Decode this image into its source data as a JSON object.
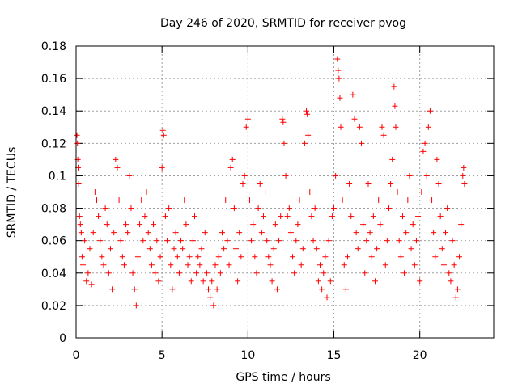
{
  "chart_data": {
    "type": "scatter",
    "title": "Day 246 of 2020, SRMTID for receiver pvog",
    "xlabel": "GPS time / hours",
    "ylabel": "SRMTID / TECUs",
    "xlim": [
      0,
      24.3
    ],
    "ylim": [
      0,
      0.18
    ],
    "x_ticks": [
      0,
      5,
      10,
      15,
      20
    ],
    "y_ticks": [
      0,
      0.02,
      0.04,
      0.06,
      0.08,
      0.1,
      0.12,
      0.14,
      0.16,
      0.18
    ],
    "y_tick_labels": [
      "0",
      "0.02",
      "0.04",
      "0.06",
      "0.08",
      "0.1",
      "0.12",
      "0.14",
      "0.16",
      "0.18"
    ],
    "grid": true,
    "marker": "+",
    "marker_color": "#ff0000",
    "series": [
      {
        "name": "pvog",
        "points": [
          [
            0.05,
            0.125
          ],
          [
            0.08,
            0.12
          ],
          [
            0.1,
            0.11
          ],
          [
            0.12,
            0.105
          ],
          [
            0.15,
            0.095
          ],
          [
            0.2,
            0.075
          ],
          [
            0.25,
            0.07
          ],
          [
            0.3,
            0.065
          ],
          [
            0.35,
            0.05
          ],
          [
            0.4,
            0.045
          ],
          [
            0.5,
            0.06
          ],
          [
            0.6,
            0.035
          ],
          [
            0.7,
            0.04
          ],
          [
            0.8,
            0.055
          ],
          [
            0.9,
            0.033
          ],
          [
            1.0,
            0.065
          ],
          [
            1.1,
            0.09
          ],
          [
            1.2,
            0.085
          ],
          [
            1.3,
            0.075
          ],
          [
            1.4,
            0.06
          ],
          [
            1.5,
            0.05
          ],
          [
            1.6,
            0.045
          ],
          [
            1.7,
            0.08
          ],
          [
            1.8,
            0.07
          ],
          [
            1.9,
            0.04
          ],
          [
            2.0,
            0.055
          ],
          [
            2.1,
            0.03
          ],
          [
            2.2,
            0.065
          ],
          [
            2.3,
            0.11
          ],
          [
            2.4,
            0.105
          ],
          [
            2.5,
            0.085
          ],
          [
            2.6,
            0.06
          ],
          [
            2.7,
            0.05
          ],
          [
            2.8,
            0.045
          ],
          [
            2.9,
            0.07
          ],
          [
            3.0,
            0.065
          ],
          [
            3.1,
            0.1
          ],
          [
            3.2,
            0.08
          ],
          [
            3.3,
            0.04
          ],
          [
            3.4,
            0.03
          ],
          [
            3.5,
            0.02
          ],
          [
            3.6,
            0.05
          ],
          [
            3.7,
            0.07
          ],
          [
            3.8,
            0.085
          ],
          [
            3.9,
            0.06
          ],
          [
            4.0,
            0.075
          ],
          [
            4.1,
            0.09
          ],
          [
            4.2,
            0.065
          ],
          [
            4.3,
            0.055
          ],
          [
            4.4,
            0.045
          ],
          [
            4.5,
            0.07
          ],
          [
            4.6,
            0.04
          ],
          [
            4.7,
            0.06
          ],
          [
            4.8,
            0.035
          ],
          [
            4.9,
            0.05
          ],
          [
            5.0,
            0.105
          ],
          [
            5.05,
            0.128
          ],
          [
            5.1,
            0.125
          ],
          [
            5.2,
            0.075
          ],
          [
            5.3,
            0.06
          ],
          [
            5.4,
            0.08
          ],
          [
            5.5,
            0.045
          ],
          [
            5.6,
            0.03
          ],
          [
            5.7,
            0.055
          ],
          [
            5.8,
            0.065
          ],
          [
            5.9,
            0.05
          ],
          [
            6.0,
            0.04
          ],
          [
            6.1,
            0.06
          ],
          [
            6.2,
            0.055
          ],
          [
            6.3,
            0.085
          ],
          [
            6.4,
            0.07
          ],
          [
            6.5,
            0.045
          ],
          [
            6.6,
            0.05
          ],
          [
            6.7,
            0.035
          ],
          [
            6.8,
            0.06
          ],
          [
            6.9,
            0.075
          ],
          [
            7.0,
            0.04
          ],
          [
            7.1,
            0.05
          ],
          [
            7.2,
            0.045
          ],
          [
            7.3,
            0.055
          ],
          [
            7.4,
            0.035
          ],
          [
            7.5,
            0.065
          ],
          [
            7.6,
            0.04
          ],
          [
            7.7,
            0.03
          ],
          [
            7.8,
            0.025
          ],
          [
            7.9,
            0.035
          ],
          [
            8.0,
            0.02
          ],
          [
            8.1,
            0.045
          ],
          [
            8.2,
            0.03
          ],
          [
            8.3,
            0.05
          ],
          [
            8.4,
            0.04
          ],
          [
            8.5,
            0.065
          ],
          [
            8.6,
            0.055
          ],
          [
            8.7,
            0.085
          ],
          [
            8.8,
            0.06
          ],
          [
            8.9,
            0.045
          ],
          [
            9.0,
            0.105
          ],
          [
            9.1,
            0.11
          ],
          [
            9.2,
            0.08
          ],
          [
            9.3,
            0.055
          ],
          [
            9.4,
            0.035
          ],
          [
            9.5,
            0.065
          ],
          [
            9.6,
            0.05
          ],
          [
            9.7,
            0.095
          ],
          [
            9.8,
            0.1
          ],
          [
            9.9,
            0.13
          ],
          [
            10.0,
            0.135
          ],
          [
            10.1,
            0.085
          ],
          [
            10.2,
            0.06
          ],
          [
            10.3,
            0.07
          ],
          [
            10.4,
            0.05
          ],
          [
            10.5,
            0.04
          ],
          [
            10.6,
            0.08
          ],
          [
            10.7,
            0.095
          ],
          [
            10.8,
            0.065
          ],
          [
            10.9,
            0.075
          ],
          [
            11.0,
            0.09
          ],
          [
            11.1,
            0.06
          ],
          [
            11.2,
            0.05
          ],
          [
            11.3,
            0.045
          ],
          [
            11.4,
            0.035
          ],
          [
            11.5,
            0.055
          ],
          [
            11.6,
            0.07
          ],
          [
            11.7,
            0.03
          ],
          [
            11.8,
            0.06
          ],
          [
            11.9,
            0.075
          ],
          [
            12.0,
            0.135
          ],
          [
            12.05,
            0.133
          ],
          [
            12.1,
            0.12
          ],
          [
            12.2,
            0.1
          ],
          [
            12.3,
            0.075
          ],
          [
            12.4,
            0.08
          ],
          [
            12.5,
            0.065
          ],
          [
            12.6,
            0.05
          ],
          [
            12.7,
            0.04
          ],
          [
            12.8,
            0.06
          ],
          [
            12.9,
            0.07
          ],
          [
            13.0,
            0.085
          ],
          [
            13.1,
            0.045
          ],
          [
            13.2,
            0.055
          ],
          [
            13.3,
            0.12
          ],
          [
            13.4,
            0.14
          ],
          [
            13.45,
            0.138
          ],
          [
            13.5,
            0.125
          ],
          [
            13.6,
            0.09
          ],
          [
            13.7,
            0.075
          ],
          [
            13.8,
            0.06
          ],
          [
            13.9,
            0.08
          ],
          [
            14.0,
            0.055
          ],
          [
            14.1,
            0.035
          ],
          [
            14.2,
            0.045
          ],
          [
            14.3,
            0.03
          ],
          [
            14.4,
            0.04
          ],
          [
            14.5,
            0.05
          ],
          [
            14.6,
            0.025
          ],
          [
            14.7,
            0.06
          ],
          [
            14.8,
            0.035
          ],
          [
            14.9,
            0.075
          ],
          [
            15.0,
            0.08
          ],
          [
            15.1,
            0.1
          ],
          [
            15.2,
            0.172
          ],
          [
            15.25,
            0.165
          ],
          [
            15.3,
            0.16
          ],
          [
            15.35,
            0.148
          ],
          [
            15.4,
            0.13
          ],
          [
            15.5,
            0.085
          ],
          [
            15.6,
            0.045
          ],
          [
            15.7,
            0.03
          ],
          [
            15.8,
            0.05
          ],
          [
            15.9,
            0.095
          ],
          [
            16.0,
            0.075
          ],
          [
            16.1,
            0.15
          ],
          [
            16.2,
            0.135
          ],
          [
            16.3,
            0.065
          ],
          [
            16.4,
            0.055
          ],
          [
            16.5,
            0.13
          ],
          [
            16.6,
            0.12
          ],
          [
            16.7,
            0.07
          ],
          [
            16.8,
            0.04
          ],
          [
            16.9,
            0.06
          ],
          [
            17.0,
            0.095
          ],
          [
            17.1,
            0.065
          ],
          [
            17.2,
            0.05
          ],
          [
            17.3,
            0.075
          ],
          [
            17.4,
            0.035
          ],
          [
            17.5,
            0.055
          ],
          [
            17.6,
            0.085
          ],
          [
            17.7,
            0.07
          ],
          [
            17.8,
            0.13
          ],
          [
            17.9,
            0.125
          ],
          [
            18.0,
            0.045
          ],
          [
            18.1,
            0.06
          ],
          [
            18.2,
            0.08
          ],
          [
            18.3,
            0.095
          ],
          [
            18.4,
            0.11
          ],
          [
            18.5,
            0.155
          ],
          [
            18.55,
            0.143
          ],
          [
            18.6,
            0.13
          ],
          [
            18.7,
            0.09
          ],
          [
            18.8,
            0.06
          ],
          [
            18.9,
            0.05
          ],
          [
            19.0,
            0.075
          ],
          [
            19.1,
            0.04
          ],
          [
            19.2,
            0.065
          ],
          [
            19.3,
            0.085
          ],
          [
            19.4,
            0.1
          ],
          [
            19.5,
            0.055
          ],
          [
            19.6,
            0.07
          ],
          [
            19.7,
            0.045
          ],
          [
            19.8,
            0.06
          ],
          [
            19.9,
            0.075
          ],
          [
            20.0,
            0.035
          ],
          [
            20.1,
            0.09
          ],
          [
            20.2,
            0.115
          ],
          [
            20.3,
            0.12
          ],
          [
            20.4,
            0.1
          ],
          [
            20.5,
            0.13
          ],
          [
            20.6,
            0.14
          ],
          [
            20.7,
            0.085
          ],
          [
            20.8,
            0.065
          ],
          [
            20.9,
            0.05
          ],
          [
            21.0,
            0.11
          ],
          [
            21.1,
            0.095
          ],
          [
            21.2,
            0.075
          ],
          [
            21.3,
            0.055
          ],
          [
            21.4,
            0.045
          ],
          [
            21.5,
            0.065
          ],
          [
            21.6,
            0.08
          ],
          [
            21.7,
            0.04
          ],
          [
            21.8,
            0.035
          ],
          [
            21.9,
            0.06
          ],
          [
            22.0,
            0.045
          ],
          [
            22.1,
            0.025
          ],
          [
            22.2,
            0.03
          ],
          [
            22.3,
            0.05
          ],
          [
            22.4,
            0.07
          ],
          [
            22.5,
            0.1
          ],
          [
            22.55,
            0.105
          ],
          [
            22.6,
            0.095
          ]
        ]
      }
    ]
  }
}
